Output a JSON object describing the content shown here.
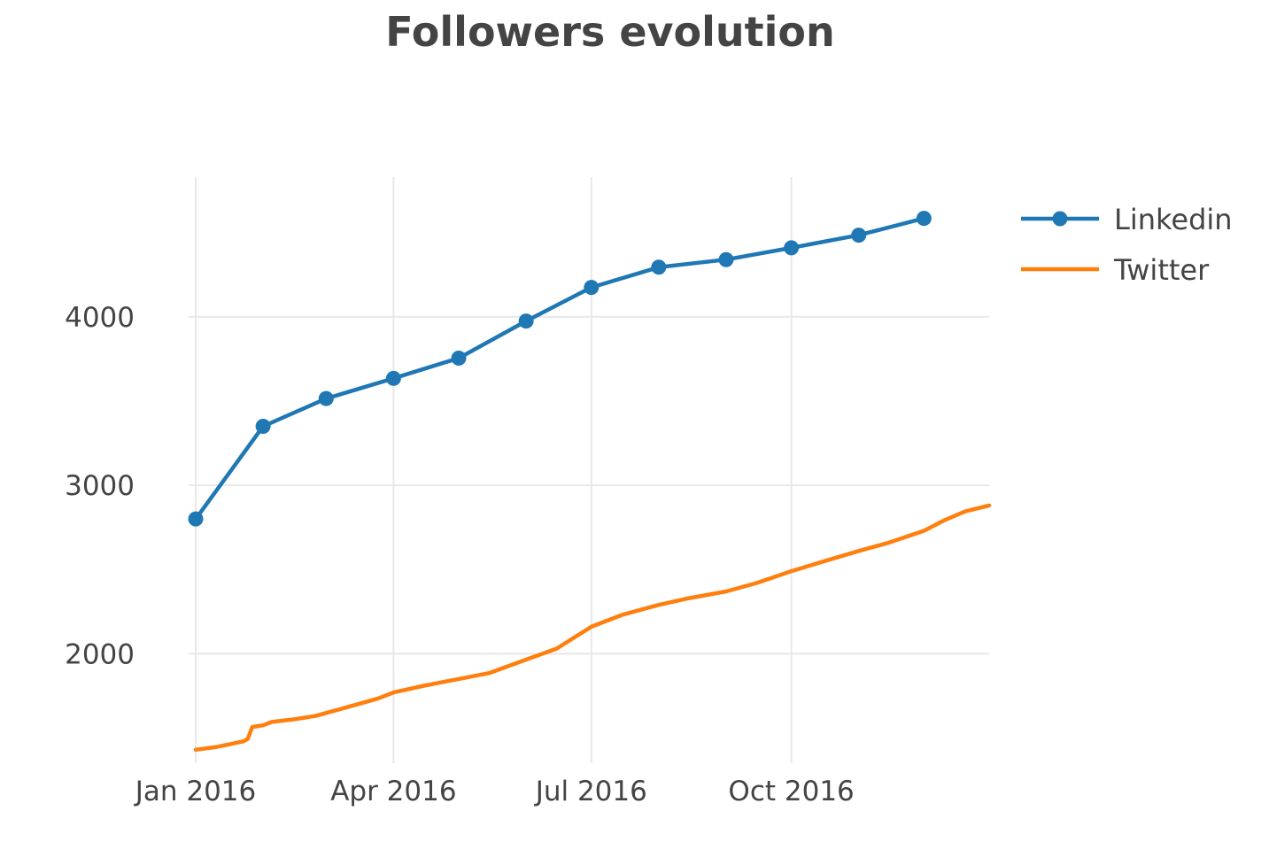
{
  "chart_data": {
    "type": "line",
    "title": "Followers evolution",
    "xlabel": "",
    "ylabel": "",
    "x_ticks": [
      {
        "date": "2016-01-01",
        "label": "Jan 2016"
      },
      {
        "date": "2016-04-01",
        "label": "Apr 2016"
      },
      {
        "date": "2016-07-01",
        "label": "Jul 2016"
      },
      {
        "date": "2016-10-01",
        "label": "Oct 2016"
      }
    ],
    "y_ticks": [
      2000,
      3000,
      4000
    ],
    "xlim": [
      "2016-01-01",
      "2016-12-31"
    ],
    "ylim": [
      1350,
      4830
    ],
    "grid": true,
    "legend": "top-right",
    "series": [
      {
        "name": "Linkedin",
        "color": "#1f77b4",
        "mode": "lines+markers",
        "points": [
          {
            "x": "2016-01-01",
            "y": 2800
          },
          {
            "x": "2016-02-01",
            "y": 3350
          },
          {
            "x": "2016-03-01",
            "y": 3515
          },
          {
            "x": "2016-04-01",
            "y": 3635
          },
          {
            "x": "2016-05-01",
            "y": 3755
          },
          {
            "x": "2016-06-01",
            "y": 3975
          },
          {
            "x": "2016-07-01",
            "y": 4175
          },
          {
            "x": "2016-08-01",
            "y": 4295
          },
          {
            "x": "2016-09-01",
            "y": 4340
          },
          {
            "x": "2016-10-01",
            "y": 4410
          },
          {
            "x": "2016-11-01",
            "y": 4485
          },
          {
            "x": "2016-12-01",
            "y": 4585
          }
        ]
      },
      {
        "name": "Twitter",
        "color": "#ff7f0e",
        "mode": "lines",
        "points": [
          {
            "x": "2016-01-01",
            "y": 1430
          },
          {
            "x": "2016-01-10",
            "y": 1445
          },
          {
            "x": "2016-01-23",
            "y": 1480
          },
          {
            "x": "2016-01-25",
            "y": 1495
          },
          {
            "x": "2016-01-27",
            "y": 1565
          },
          {
            "x": "2016-02-01",
            "y": 1575
          },
          {
            "x": "2016-02-05",
            "y": 1595
          },
          {
            "x": "2016-02-15",
            "y": 1610
          },
          {
            "x": "2016-02-25",
            "y": 1630
          },
          {
            "x": "2016-03-10",
            "y": 1680
          },
          {
            "x": "2016-03-25",
            "y": 1735
          },
          {
            "x": "2016-04-01",
            "y": 1770
          },
          {
            "x": "2016-04-15",
            "y": 1810
          },
          {
            "x": "2016-05-01",
            "y": 1850
          },
          {
            "x": "2016-05-15",
            "y": 1885
          },
          {
            "x": "2016-06-01",
            "y": 1965
          },
          {
            "x": "2016-06-15",
            "y": 2030
          },
          {
            "x": "2016-07-01",
            "y": 2160
          },
          {
            "x": "2016-07-15",
            "y": 2230
          },
          {
            "x": "2016-08-01",
            "y": 2290
          },
          {
            "x": "2016-08-15",
            "y": 2330
          },
          {
            "x": "2016-09-01",
            "y": 2370
          },
          {
            "x": "2016-09-15",
            "y": 2420
          },
          {
            "x": "2016-10-01",
            "y": 2490
          },
          {
            "x": "2016-10-15",
            "y": 2545
          },
          {
            "x": "2016-11-01",
            "y": 2610
          },
          {
            "x": "2016-11-15",
            "y": 2660
          },
          {
            "x": "2016-12-01",
            "y": 2730
          },
          {
            "x": "2016-12-10",
            "y": 2790
          },
          {
            "x": "2016-12-20",
            "y": 2845
          },
          {
            "x": "2016-12-31",
            "y": 2880
          }
        ]
      }
    ]
  }
}
